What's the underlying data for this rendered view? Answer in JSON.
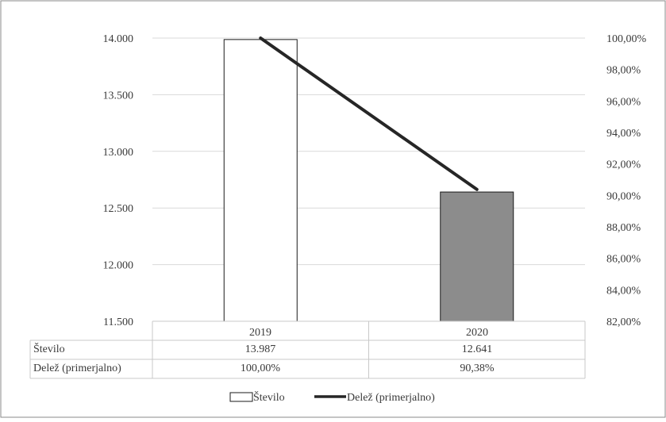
{
  "chart_data": {
    "type": "bar",
    "categories": [
      "2019",
      "2020"
    ],
    "series": [
      {
        "name": "Število",
        "kind": "bar",
        "axis": "left",
        "values": [
          13987,
          12641
        ],
        "value_labels": [
          "13.987",
          "12.641"
        ],
        "colors": [
          "#ffffff",
          "#8c8c8c"
        ]
      },
      {
        "name": "Delež (primerjalno)",
        "kind": "line",
        "axis": "right",
        "values": [
          100.0,
          90.38
        ],
        "value_labels": [
          "100,00%",
          "90,38%"
        ],
        "color": "#262626"
      }
    ],
    "y_left": {
      "lim": [
        11500,
        14000
      ],
      "ticks": [
        11500,
        12000,
        12500,
        13000,
        13500,
        14000
      ],
      "tick_labels": [
        "11.500",
        "12.000",
        "12.500",
        "13.000",
        "13.500",
        "14.000"
      ]
    },
    "y_right": {
      "lim": [
        82,
        100
      ],
      "ticks": [
        82,
        84,
        86,
        88,
        90,
        92,
        94,
        96,
        98,
        100
      ],
      "tick_labels": [
        "82,00%",
        "84,00%",
        "86,00%",
        "88,00%",
        "90,00%",
        "92,00%",
        "94,00%",
        "96,00%",
        "98,00%",
        "100,00%"
      ]
    },
    "grid": true,
    "data_table": true,
    "legend_position": "bottom"
  }
}
